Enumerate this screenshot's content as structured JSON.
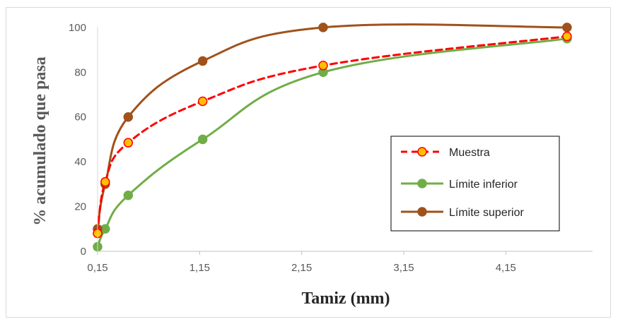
{
  "chart_data": {
    "type": "line",
    "title": "",
    "xlabel": "Tamiz (mm)",
    "ylabel": "% acumulado que pasa",
    "xlim": [
      0.15,
      5.0
    ],
    "ylim": [
      0,
      105
    ],
    "x_ticks": [
      {
        "value": 0.15,
        "label": "0,15"
      },
      {
        "value": 1.15,
        "label": "1,15"
      },
      {
        "value": 2.15,
        "label": "2,15"
      },
      {
        "value": 3.15,
        "label": "3,15"
      },
      {
        "value": 4.15,
        "label": "4,15"
      }
    ],
    "y_ticks": [
      {
        "value": 0,
        "label": "0"
      },
      {
        "value": 20,
        "label": "20"
      },
      {
        "value": 40,
        "label": "40"
      },
      {
        "value": 60,
        "label": "60"
      },
      {
        "value": 80,
        "label": "80"
      },
      {
        "value": 100,
        "label": "100"
      }
    ],
    "grid": false,
    "legend_position": "right",
    "series": [
      {
        "name": "Muestra",
        "color": "#ff0000",
        "marker_color": "#ffc000",
        "line_style": "dashed",
        "points": [
          {
            "x": 0.15,
            "y": 8
          },
          {
            "x": 0.225,
            "y": 31
          },
          {
            "x": 0.45,
            "y": 48.5
          },
          {
            "x": 1.18,
            "y": 67
          },
          {
            "x": 2.36,
            "y": 83
          },
          {
            "x": 4.75,
            "y": 96
          }
        ]
      },
      {
        "name": "Límite inferior",
        "color": "#70ad47",
        "marker_color": "#70ad47",
        "line_style": "solid",
        "points": [
          {
            "x": 0.15,
            "y": 2
          },
          {
            "x": 0.225,
            "y": 10
          },
          {
            "x": 0.45,
            "y": 25
          },
          {
            "x": 1.18,
            "y": 50
          },
          {
            "x": 2.36,
            "y": 80
          },
          {
            "x": 4.75,
            "y": 95
          }
        ]
      },
      {
        "name": "Límite superior",
        "color": "#a0521b",
        "marker_color": "#a0521b",
        "line_style": "solid",
        "points": [
          {
            "x": 0.15,
            "y": 10
          },
          {
            "x": 0.225,
            "y": 30
          },
          {
            "x": 0.45,
            "y": 60
          },
          {
            "x": 1.18,
            "y": 85
          },
          {
            "x": 2.36,
            "y": 100
          },
          {
            "x": 4.75,
            "y": 100
          }
        ]
      }
    ]
  }
}
